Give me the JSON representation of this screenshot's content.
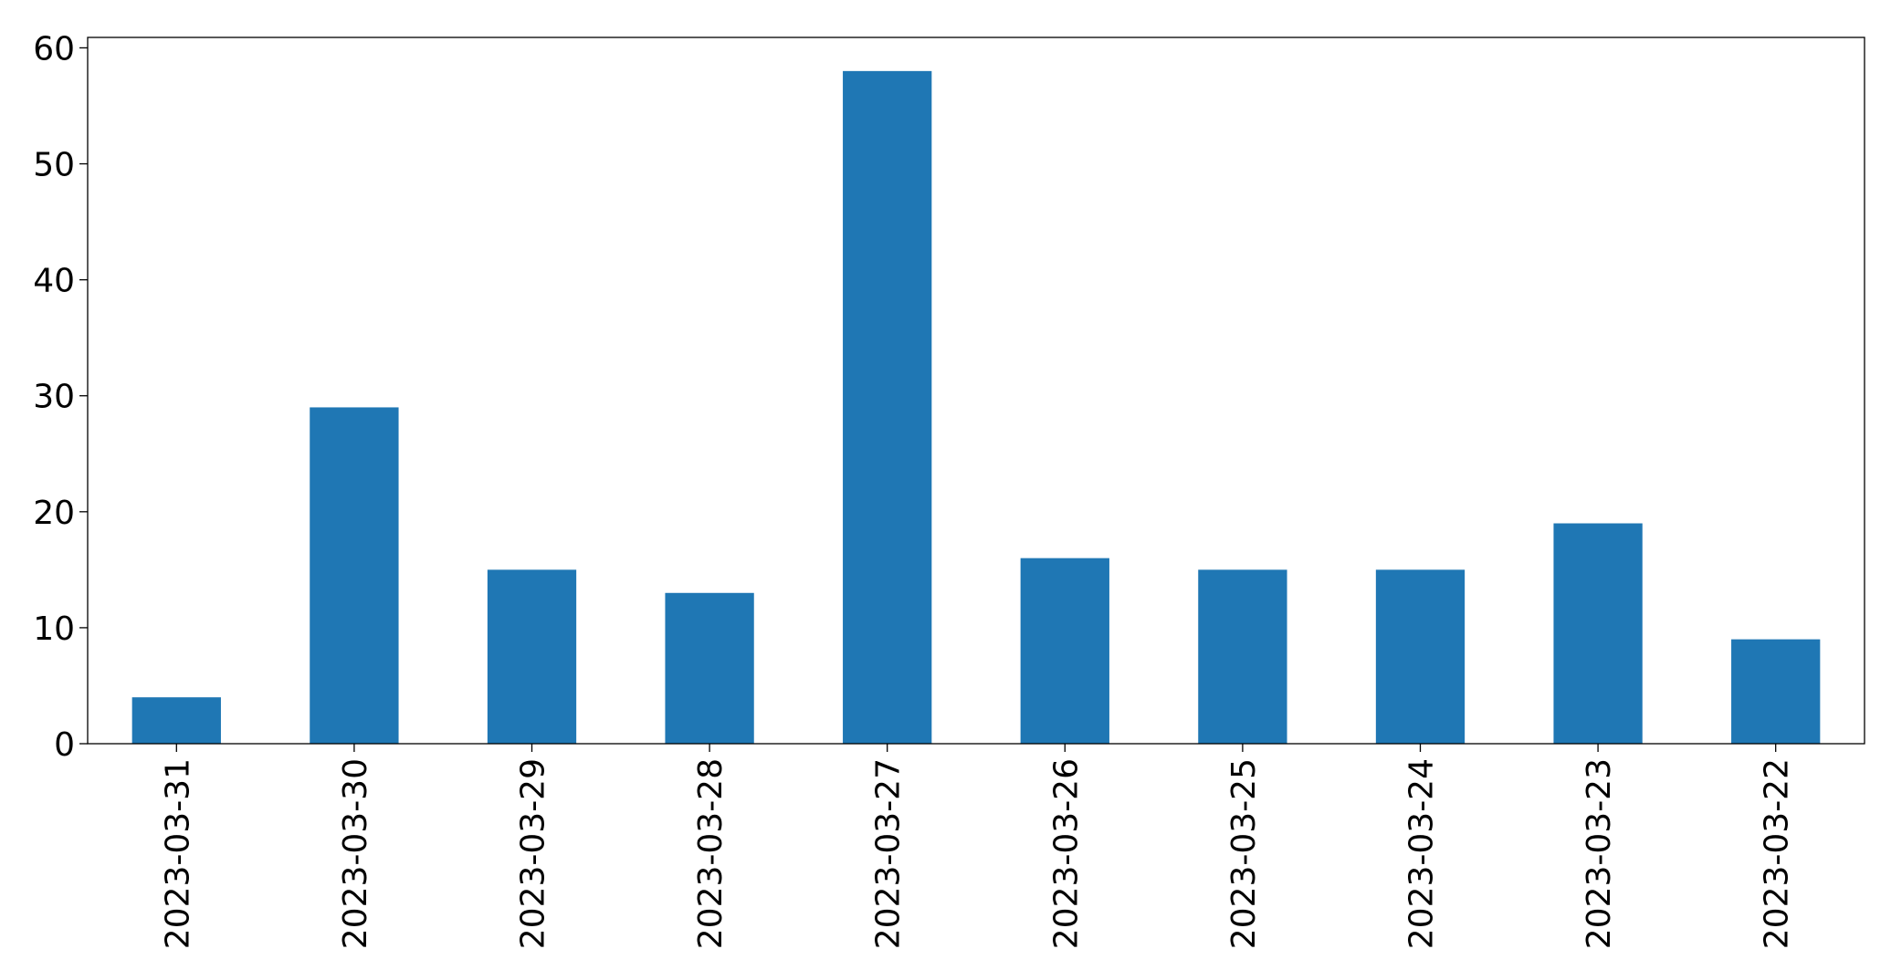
{
  "chart_data": {
    "type": "bar",
    "categories": [
      "2023-03-31",
      "2023-03-30",
      "2023-03-29",
      "2023-03-28",
      "2023-03-27",
      "2023-03-26",
      "2023-03-25",
      "2023-03-24",
      "2023-03-23",
      "2023-03-22"
    ],
    "values": [
      4,
      29,
      15,
      13,
      58,
      16,
      15,
      15,
      19,
      9
    ],
    "color": "#1f77b4",
    "ylim": [
      0,
      60.9
    ],
    "yticks": [
      0,
      10,
      20,
      30,
      40,
      50,
      60
    ],
    "grid": false
  }
}
